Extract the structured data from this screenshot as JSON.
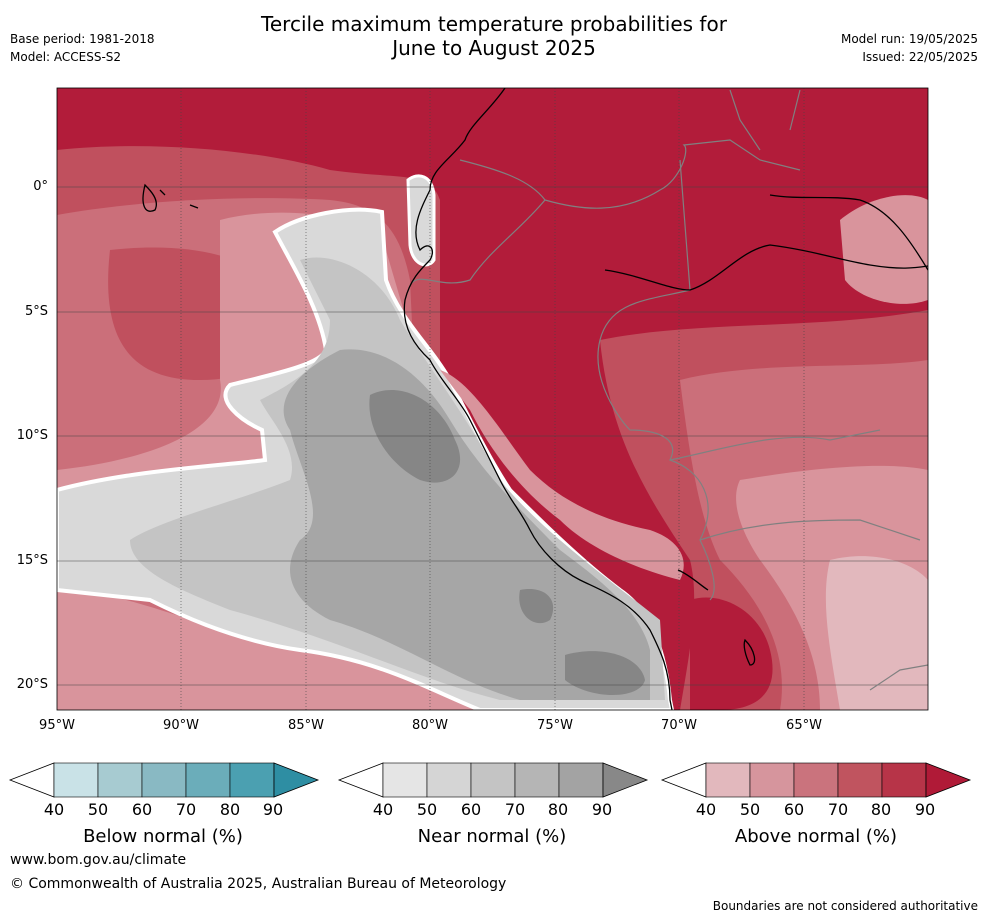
{
  "header": {
    "title_line1": "Tercile maximum temperature probabilities for",
    "title_line2": "June to August 2025",
    "base_period": "Base period: 1981-2018",
    "model": "Model: ACCESS-S2",
    "model_run": "Model run: 19/05/2025",
    "issued": "Issued: 22/05/2025"
  },
  "map": {
    "y_ticks": [
      "0°",
      "5°S",
      "10°S",
      "15°S",
      "20°S"
    ],
    "x_ticks": [
      "95°W",
      "90°W",
      "85°W",
      "80°W",
      "75°W",
      "70°W",
      "65°W"
    ],
    "colors": {
      "deep_red": "#b21c3a",
      "red": "#c0505e",
      "mid_red": "#cb6f7a",
      "pink": "#d9949c",
      "light_pink": "#e2b8bd",
      "light_grey": "#d9d9d9",
      "grey": "#c4c4c4",
      "mid_grey": "#a6a6a6",
      "dark_grey": "#868686",
      "white_contour": "#ffffff",
      "coast": "#000000",
      "border": "#808080"
    }
  },
  "legend": {
    "below": {
      "label": "Below normal (%)",
      "ticks": [
        "40",
        "50",
        "60",
        "70",
        "80",
        "90"
      ],
      "colors": [
        "#c9e2e7",
        "#a7cbd1",
        "#89b9c3",
        "#6badba",
        "#4ba0b1",
        "#2e8ea3"
      ]
    },
    "near": {
      "label": "Near normal (%)",
      "ticks": [
        "40",
        "50",
        "60",
        "70",
        "80",
        "90"
      ],
      "colors": [
        "#e5e5e5",
        "#d5d5d5",
        "#c4c4c4",
        "#b5b5b5",
        "#a3a3a3",
        "#888888"
      ]
    },
    "above": {
      "label": "Above normal (%)",
      "ticks": [
        "40",
        "50",
        "60",
        "70",
        "80",
        "90"
      ],
      "colors": [
        "#e2b8bd",
        "#d6959d",
        "#ca737d",
        "#c0545f",
        "#b73448",
        "#b01a37"
      ]
    }
  },
  "footer": {
    "url": "www.bom.gov.au/climate",
    "copyright": "© Commonwealth of Australia 2025, Australian Bureau of Meteorology",
    "disclaimer": "Boundaries are not considered authoritative"
  }
}
